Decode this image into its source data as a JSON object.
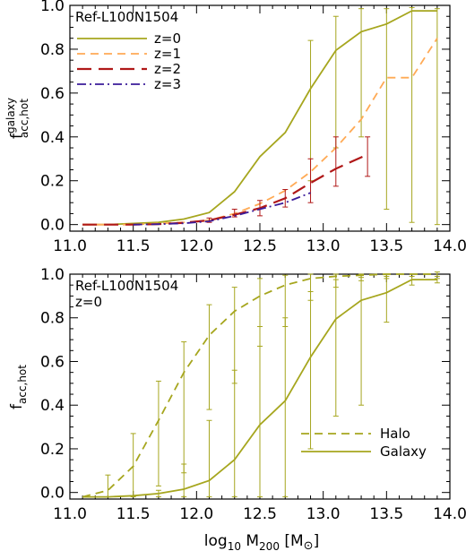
{
  "chart_data": [
    {
      "type": "line",
      "panel": "top",
      "annotation": "Ref-L100N1504",
      "ylabel": {
        "base": "f",
        "sup": "galaxy",
        "sub": "acc,hot"
      },
      "xlabel": "",
      "xlim": [
        11.0,
        14.0
      ],
      "ylim": [
        -0.03,
        1.0
      ],
      "xticks": [
        "11.0",
        "11.5",
        "12.0",
        "12.5",
        "13.0",
        "13.5",
        "14.0"
      ],
      "yticks": [
        "0.0",
        "0.2",
        "0.4",
        "0.6",
        "0.8",
        "1.0"
      ],
      "legend_position": "top-left",
      "series": [
        {
          "name": "z=0",
          "style": "solid",
          "color": "#a6a61e",
          "x": [
            11.1,
            11.3,
            11.5,
            11.7,
            11.9,
            12.1,
            12.3,
            12.5,
            12.7,
            12.9,
            13.1,
            13.3,
            13.5,
            13.7,
            13.9
          ],
          "y": [
            0.0,
            0.0,
            0.005,
            0.01,
            0.025,
            0.055,
            0.15,
            0.31,
            0.42,
            0.62,
            0.795,
            0.88,
            0.915,
            0.975,
            0.975
          ],
          "err_low": [
            0.0,
            0.0,
            0.005,
            0.01,
            0.025,
            0.055,
            0.15,
            0.31,
            0.42,
            0.2,
            0.35,
            0.4,
            0.07,
            0.01,
            0.0
          ],
          "err_high": [
            0.0,
            0.0,
            0.005,
            0.01,
            0.025,
            0.055,
            0.15,
            0.31,
            0.42,
            0.84,
            0.95,
            0.985,
            0.985,
            0.99,
            0.985
          ]
        },
        {
          "name": "z=1",
          "style": "dashed",
          "color": "#ffaa55",
          "x": [
            11.1,
            11.3,
            11.5,
            11.7,
            11.9,
            12.1,
            12.3,
            12.5,
            12.7,
            12.9,
            13.1,
            13.3,
            13.5,
            13.7,
            13.9
          ],
          "y": [
            0.0,
            0.0,
            0.0,
            0.005,
            0.01,
            0.02,
            0.05,
            0.095,
            0.155,
            0.24,
            0.35,
            0.48,
            0.67,
            0.67,
            0.85
          ]
        },
        {
          "name": "z=2",
          "style": "longdash",
          "color": "#b01818",
          "x": [
            11.1,
            11.3,
            11.5,
            11.7,
            11.9,
            12.1,
            12.3,
            12.5,
            12.7,
            12.9,
            13.1,
            13.35
          ],
          "y": [
            0.0,
            0.0,
            0.0,
            0.002,
            0.008,
            0.02,
            0.045,
            0.075,
            0.12,
            0.19,
            0.255,
            0.32
          ],
          "err_low": [
            0.0,
            0.0,
            0.0,
            0.002,
            0.008,
            0.01,
            0.035,
            0.04,
            0.08,
            0.1,
            0.175,
            0.22
          ],
          "err_high": [
            0.0,
            0.0,
            0.0,
            0.002,
            0.008,
            0.03,
            0.07,
            0.11,
            0.16,
            0.3,
            0.4,
            0.4
          ]
        },
        {
          "name": "z=3",
          "style": "dashdot",
          "color": "#3a1b9a",
          "x": [
            11.5,
            11.7,
            11.9,
            12.1,
            12.3,
            12.5,
            12.7,
            12.9
          ],
          "y": [
            0.0,
            0.002,
            0.006,
            0.015,
            0.04,
            0.07,
            0.1,
            0.145
          ]
        }
      ]
    },
    {
      "type": "line",
      "panel": "bottom",
      "annotation": "Ref-L100N1504",
      "annotation2": "z=0",
      "ylabel": {
        "base": "f",
        "sup": "",
        "sub": "acc,hot"
      },
      "xlabel": {
        "prefix": "log",
        "prefix_sub": "10",
        "main": " M",
        "main_sub": "200",
        "unit": " [M",
        "unit_sym": "⊙",
        "unit_end": "]"
      },
      "xlim": [
        11.0,
        14.0
      ],
      "ylim": [
        -0.03,
        1.0
      ],
      "xticks": [
        "11.0",
        "11.5",
        "12.0",
        "12.5",
        "13.0",
        "13.5",
        "14.0"
      ],
      "yticks": [
        "0.0",
        "0.2",
        "0.4",
        "0.6",
        "0.8",
        "1.0"
      ],
      "legend_position": "bottom-right",
      "series": [
        {
          "name": "Halo",
          "style": "dashed",
          "color": "#a6a61e",
          "x": [
            11.1,
            11.3,
            11.5,
            11.7,
            11.9,
            12.1,
            12.3,
            12.5,
            12.7,
            12.9,
            13.1,
            13.3,
            13.5,
            13.7,
            13.9
          ],
          "y": [
            -0.02,
            0.01,
            0.12,
            0.33,
            0.55,
            0.72,
            0.83,
            0.9,
            0.95,
            0.98,
            0.99,
            0.995,
            1.0,
            1.0,
            1.0
          ],
          "err_low": [
            -0.02,
            -0.02,
            -0.02,
            0.03,
            0.09,
            0.38,
            0.5,
            0.67,
            0.76,
            0.88,
            0.94,
            0.97,
            0.98,
            0.99,
            0.99
          ],
          "err_high": [
            -0.02,
            0.08,
            0.27,
            0.51,
            0.69,
            0.86,
            0.94,
            0.98,
            0.995,
            1.0,
            1.0,
            1.0,
            1.0,
            1.0,
            1.01
          ]
        },
        {
          "name": "Galaxy",
          "style": "solid",
          "color": "#a6a61e",
          "x": [
            11.1,
            11.3,
            11.5,
            11.7,
            11.9,
            12.1,
            12.3,
            12.5,
            12.7,
            12.9,
            13.1,
            13.3,
            13.5,
            13.7,
            13.9
          ],
          "y": [
            -0.02,
            -0.02,
            -0.015,
            -0.005,
            0.015,
            0.055,
            0.15,
            0.31,
            0.42,
            0.62,
            0.795,
            0.88,
            0.915,
            0.975,
            0.975
          ],
          "err_low": [
            -0.02,
            -0.02,
            -0.02,
            -0.02,
            -0.02,
            -0.02,
            -0.02,
            -0.02,
            -0.02,
            0.2,
            0.35,
            0.4,
            0.78,
            0.95,
            0.96
          ],
          "err_high": [
            -0.02,
            -0.02,
            -0.01,
            0.01,
            0.13,
            0.33,
            0.56,
            0.76,
            0.8,
            0.92,
            0.975,
            0.985,
            0.99,
            0.99,
            0.98
          ]
        }
      ]
    }
  ]
}
